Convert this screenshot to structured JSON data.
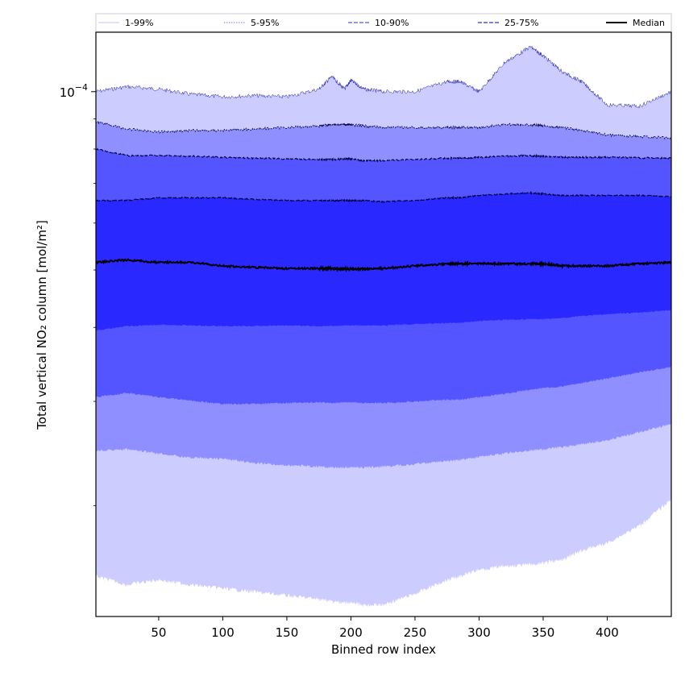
{
  "chart_data": {
    "type": "area",
    "xlabel": "Binned row index",
    "ylabel": "Total vertical NO₂ column [mol/m²]",
    "x_scale": "linear",
    "y_scale": "log",
    "xlim": [
      1,
      450
    ],
    "ylim": [
      1.3e-05,
      0.000126
    ],
    "x_ticks": [
      50,
      100,
      150,
      200,
      250,
      300,
      350,
      400
    ],
    "y_major_ticks": [
      {
        "value": 0.0001,
        "base": "10",
        "exponent": "−4"
      }
    ],
    "y_minor_ticks": [
      2e-05,
      3e-05,
      4e-05,
      5e-05,
      6e-05,
      7e-05,
      8e-05,
      9e-05
    ],
    "grid": false,
    "legend_position": "top",
    "x": [
      1,
      25,
      50,
      75,
      100,
      125,
      150,
      175,
      185,
      195,
      200,
      210,
      225,
      250,
      275,
      285,
      300,
      320,
      340,
      350,
      365,
      380,
      400,
      425,
      450
    ],
    "bands": [
      {
        "name": "1-99%",
        "color": "#ccccff",
        "upper": [
          0.0001,
          0.000102,
          0.000101,
          9.9e-05,
          9.8e-05,
          9.85e-05,
          9.8e-05,
          0.000101,
          0.000106,
          0.000101,
          0.0001045,
          0.000101,
          0.0001,
          0.0001,
          0.000104,
          0.000104,
          0.0001,
          0.000112,
          0.000119,
          0.000115,
          0.000108,
          0.000104,
          9.5e-05,
          9.45e-05,
          0.0001
        ],
        "lower": [
          1.52e-05,
          1.47e-05,
          1.5e-05,
          1.47e-05,
          1.45e-05,
          1.43e-05,
          1.41e-05,
          1.39e-05,
          1.38e-05,
          1.37e-05,
          1.37e-05,
          1.36e-05,
          1.36e-05,
          1.42e-05,
          1.5e-05,
          1.52e-05,
          1.56e-05,
          1.58e-05,
          1.59e-05,
          1.6e-05,
          1.62e-05,
          1.68e-05,
          1.73e-05,
          1.85e-05,
          2.05e-05
        ]
      },
      {
        "name": "5-95%",
        "color": "#8f8fff",
        "upper": [
          8.9e-05,
          8.65e-05,
          8.55e-05,
          8.6e-05,
          8.6e-05,
          8.65e-05,
          8.7e-05,
          8.75e-05,
          8.8e-05,
          8.8e-05,
          8.8e-05,
          8.75e-05,
          8.7e-05,
          8.7e-05,
          8.7e-05,
          8.7e-05,
          8.7e-05,
          8.8e-05,
          8.8e-05,
          8.75e-05,
          8.7e-05,
          8.6e-05,
          8.45e-05,
          8.4e-05,
          8.35e-05
        ],
        "lower": [
          2.48e-05,
          2.49e-05,
          2.45e-05,
          2.41e-05,
          2.4e-05,
          2.36e-05,
          2.34e-05,
          2.33e-05,
          2.32e-05,
          2.32e-05,
          2.32e-05,
          2.32e-05,
          2.33e-05,
          2.35e-05,
          2.38e-05,
          2.39e-05,
          2.42e-05,
          2.45e-05,
          2.48e-05,
          2.49e-05,
          2.51e-05,
          2.54e-05,
          2.58e-05,
          2.66e-05,
          2.75e-05
        ]
      },
      {
        "name": "10-90%",
        "color": "#5555ff",
        "upper": [
          8e-05,
          7.8e-05,
          7.8e-05,
          7.78e-05,
          7.75e-05,
          7.72e-05,
          7.7e-05,
          7.68e-05,
          7.68e-05,
          7.7e-05,
          7.7e-05,
          7.65e-05,
          7.65e-05,
          7.68e-05,
          7.72e-05,
          7.72e-05,
          7.75e-05,
          7.78e-05,
          7.8e-05,
          7.78e-05,
          7.75e-05,
          7.75e-05,
          7.75e-05,
          7.73e-05,
          7.72e-05
        ],
        "lower": [
          3.05e-05,
          3.1e-05,
          3.05e-05,
          3.01e-05,
          2.97e-05,
          2.97e-05,
          2.98e-05,
          2.99e-05,
          2.98e-05,
          2.99e-05,
          2.99e-05,
          2.98e-05,
          2.98e-05,
          3e-05,
          3.02e-05,
          3.02e-05,
          3.05e-05,
          3.09e-05,
          3.14e-05,
          3.16e-05,
          3.18e-05,
          3.22e-05,
          3.28e-05,
          3.36e-05,
          3.43e-05
        ]
      },
      {
        "name": "25-75%",
        "color": "#2929ff",
        "upper": [
          6.55e-05,
          6.55e-05,
          6.62e-05,
          6.62e-05,
          6.62e-05,
          6.58e-05,
          6.55e-05,
          6.55e-05,
          6.55e-05,
          6.55e-05,
          6.55e-05,
          6.55e-05,
          6.52e-05,
          6.55e-05,
          6.62e-05,
          6.62e-05,
          6.68e-05,
          6.72e-05,
          6.75e-05,
          6.72e-05,
          6.68e-05,
          6.68e-05,
          6.68e-05,
          6.68e-05,
          6.65e-05
        ],
        "lower": [
          3.95e-05,
          4.02e-05,
          4.04e-05,
          4.03e-05,
          4.02e-05,
          4.02e-05,
          4.03e-05,
          4.02e-05,
          4.02e-05,
          4.03e-05,
          4.03e-05,
          4.03e-05,
          4.03e-05,
          4.05e-05,
          4.07e-05,
          4.07e-05,
          4.1e-05,
          4.12e-05,
          4.13e-05,
          4.13e-05,
          4.15e-05,
          4.18e-05,
          4.21e-05,
          4.24e-05,
          4.28e-05
        ]
      }
    ],
    "median": {
      "name": "Median",
      "color": "#000000",
      "values": [
        5.15e-05,
        5.2e-05,
        5.15e-05,
        5.15e-05,
        5.08e-05,
        5.05e-05,
        5.03e-05,
        5.03e-05,
        5.03e-05,
        5.02e-05,
        5.02e-05,
        5.02e-05,
        5.03e-05,
        5.08e-05,
        5.12e-05,
        5.12e-05,
        5.13e-05,
        5.12e-05,
        5.12e-05,
        5.12e-05,
        5.08e-05,
        5.08e-05,
        5.08e-05,
        5.12e-05,
        5.15e-05
      ]
    },
    "legend": [
      {
        "label": "1-99%",
        "color": "#ccccff",
        "style": "solid"
      },
      {
        "label": "5-95%",
        "color": "#8f8fff",
        "style": "dotted"
      },
      {
        "label": "10-90%",
        "color": "#5555ff",
        "style": "dashed"
      },
      {
        "label": "25-75%",
        "color": "#2929ff",
        "style": "dashed"
      },
      {
        "label": "Median",
        "color": "#000000",
        "style": "solid"
      }
    ]
  }
}
